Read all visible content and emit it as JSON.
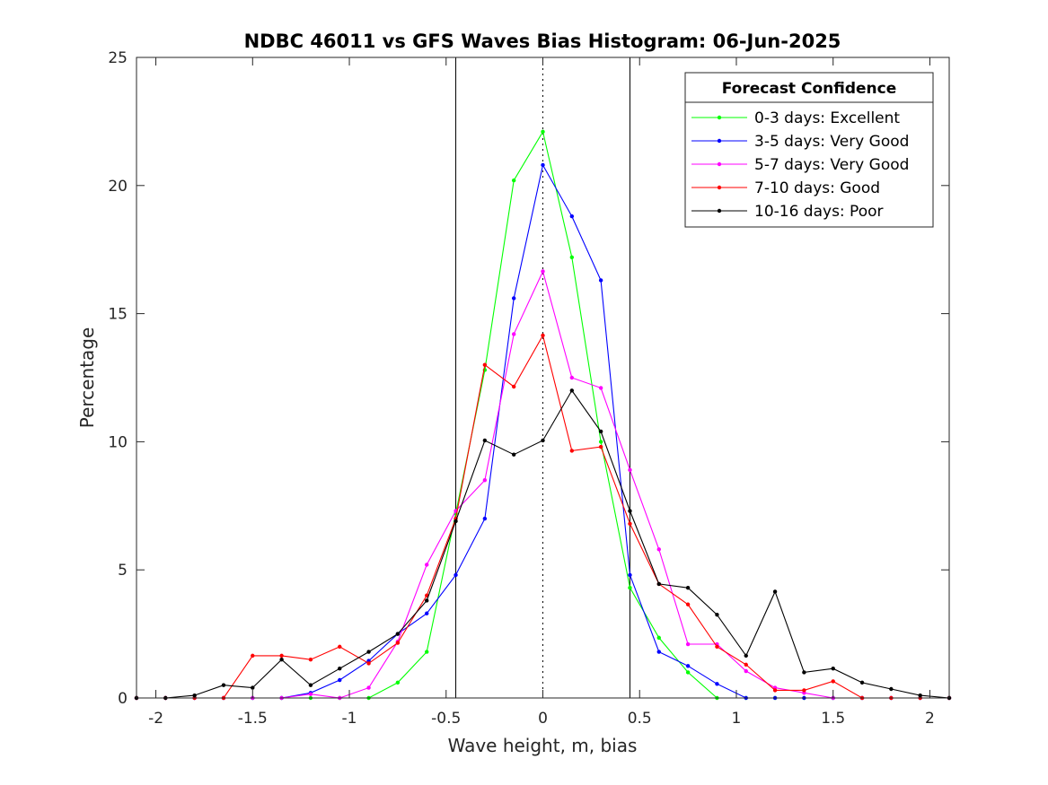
{
  "chart_data": {
    "type": "line",
    "title": "NDBC 46011 vs GFS Waves Bias Histogram: 06-Jun-2025",
    "xlabel": "Wave height, m, bias",
    "ylabel": "Percentage",
    "xlim": [
      -2.1,
      2.1
    ],
    "ylim": [
      0,
      25
    ],
    "xticks": [
      -2,
      -1.5,
      -1,
      -0.5,
      0,
      0.5,
      1,
      1.5,
      2
    ],
    "xtick_labels": [
      "-2",
      "-1.5",
      "-1",
      "-0.5",
      "0",
      "0.5",
      "1",
      "1.5",
      "2"
    ],
    "yticks": [
      0,
      5,
      10,
      15,
      20,
      25
    ],
    "ytick_labels": [
      "0",
      "5",
      "10",
      "15",
      "20",
      "25"
    ],
    "grid": false,
    "reference_lines": [
      {
        "x": -0.45,
        "style": "solid"
      },
      {
        "x": 0,
        "style": "dotted"
      },
      {
        "x": 0.45,
        "style": "solid"
      }
    ],
    "legend": {
      "title": "Forecast Confidence",
      "position": "top-right"
    },
    "series": [
      {
        "name": "0-3 days: Excellent",
        "color": "#00ff00",
        "points": [
          [
            -2.1,
            0
          ],
          [
            -1.95,
            0
          ],
          [
            -1.8,
            0
          ],
          [
            -1.65,
            0
          ],
          [
            -1.5,
            0
          ],
          [
            -1.35,
            0
          ],
          [
            -1.2,
            0
          ],
          [
            -1.05,
            0
          ],
          [
            -0.9,
            0
          ],
          [
            -0.75,
            0.6
          ],
          [
            -0.6,
            1.8
          ],
          [
            -0.45,
            7.2
          ],
          [
            -0.3,
            12.8
          ],
          [
            -0.15,
            20.2
          ],
          [
            0,
            22.1
          ],
          [
            0.15,
            17.2
          ],
          [
            0.3,
            10
          ],
          [
            0.45,
            4.3
          ],
          [
            0.6,
            2.35
          ],
          [
            0.75,
            1
          ],
          [
            0.9,
            0
          ],
          [
            1.05,
            0
          ],
          [
            1.2,
            0
          ],
          [
            1.35,
            0
          ],
          [
            1.5,
            0
          ],
          [
            1.65,
            0
          ],
          [
            1.8,
            0
          ],
          [
            1.95,
            0
          ],
          [
            2.1,
            0
          ]
        ]
      },
      {
        "name": "3-5 days: Very Good",
        "color": "#0000ff",
        "points": [
          [
            -2.1,
            0
          ],
          [
            -1.95,
            0
          ],
          [
            -1.8,
            0
          ],
          [
            -1.65,
            0
          ],
          [
            -1.5,
            0
          ],
          [
            -1.35,
            0
          ],
          [
            -1.2,
            0.2
          ],
          [
            -1.05,
            0.7
          ],
          [
            -0.9,
            1.45
          ],
          [
            -0.75,
            2.5
          ],
          [
            -0.6,
            3.3
          ],
          [
            -0.45,
            4.8
          ],
          [
            -0.3,
            7
          ],
          [
            -0.15,
            15.6
          ],
          [
            0,
            20.8
          ],
          [
            0.15,
            18.8
          ],
          [
            0.3,
            16.3
          ],
          [
            0.45,
            4.8
          ],
          [
            0.6,
            1.8
          ],
          [
            0.75,
            1.25
          ],
          [
            0.9,
            0.55
          ],
          [
            1.05,
            0
          ],
          [
            1.2,
            0
          ],
          [
            1.35,
            0
          ],
          [
            1.5,
            0
          ],
          [
            1.65,
            0
          ],
          [
            1.8,
            0
          ],
          [
            1.95,
            0
          ],
          [
            2.1,
            0
          ]
        ]
      },
      {
        "name": "5-7 days: Very Good",
        "color": "#ff00ff",
        "points": [
          [
            -2.1,
            0
          ],
          [
            -1.95,
            0
          ],
          [
            -1.8,
            0
          ],
          [
            -1.65,
            0
          ],
          [
            -1.5,
            0
          ],
          [
            -1.35,
            0
          ],
          [
            -1.2,
            0.15
          ],
          [
            -1.05,
            0
          ],
          [
            -0.9,
            0.4
          ],
          [
            -0.75,
            2.2
          ],
          [
            -0.6,
            5.2
          ],
          [
            -0.45,
            7.3
          ],
          [
            -0.3,
            8.5
          ],
          [
            -0.15,
            14.2
          ],
          [
            0,
            16.65
          ],
          [
            0.15,
            12.5
          ],
          [
            0.3,
            12.1
          ],
          [
            0.45,
            8.9
          ],
          [
            0.6,
            5.8
          ],
          [
            0.75,
            2.1
          ],
          [
            0.9,
            2.1
          ],
          [
            1.05,
            1.05
          ],
          [
            1.2,
            0.4
          ],
          [
            1.35,
            0.2
          ],
          [
            1.5,
            0
          ],
          [
            1.65,
            0
          ],
          [
            1.8,
            0
          ],
          [
            1.95,
            0
          ],
          [
            2.1,
            0
          ]
        ]
      },
      {
        "name": "7-10 days: Good",
        "color": "#ff0000",
        "points": [
          [
            -2.1,
            0
          ],
          [
            -1.95,
            0
          ],
          [
            -1.8,
            0
          ],
          [
            -1.65,
            0
          ],
          [
            -1.5,
            1.65
          ],
          [
            -1.35,
            1.65
          ],
          [
            -1.2,
            1.5
          ],
          [
            -1.05,
            2
          ],
          [
            -0.9,
            1.35
          ],
          [
            -0.75,
            2.15
          ],
          [
            -0.6,
            4
          ],
          [
            -0.45,
            7
          ],
          [
            -0.3,
            13
          ],
          [
            -0.15,
            12.15
          ],
          [
            0,
            14.15
          ],
          [
            0.15,
            9.65
          ],
          [
            0.3,
            9.8
          ],
          [
            0.45,
            6.8
          ],
          [
            0.6,
            4.45
          ],
          [
            0.75,
            3.65
          ],
          [
            0.9,
            2
          ],
          [
            1.05,
            1.3
          ],
          [
            1.2,
            0.3
          ],
          [
            1.35,
            0.3
          ],
          [
            1.5,
            0.65
          ],
          [
            1.65,
            0
          ],
          [
            1.8,
            0
          ],
          [
            1.95,
            0
          ],
          [
            2.1,
            0
          ]
        ]
      },
      {
        "name": "10-16 days: Poor",
        "color": "#000000",
        "points": [
          [
            -2.1,
            0
          ],
          [
            -1.95,
            0
          ],
          [
            -1.8,
            0.1
          ],
          [
            -1.65,
            0.5
          ],
          [
            -1.5,
            0.4
          ],
          [
            -1.35,
            1.5
          ],
          [
            -1.2,
            0.5
          ],
          [
            -1.05,
            1.15
          ],
          [
            -0.9,
            1.8
          ],
          [
            -0.75,
            2.5
          ],
          [
            -0.6,
            3.8
          ],
          [
            -0.45,
            6.9
          ],
          [
            -0.3,
            10.05
          ],
          [
            -0.15,
            9.5
          ],
          [
            0,
            10.05
          ],
          [
            0.15,
            12
          ],
          [
            0.3,
            10.4
          ],
          [
            0.45,
            7.3
          ],
          [
            0.6,
            4.45
          ],
          [
            0.75,
            4.3
          ],
          [
            0.9,
            3.25
          ],
          [
            1.05,
            1.65
          ],
          [
            1.2,
            4.15
          ],
          [
            1.35,
            1
          ],
          [
            1.5,
            1.15
          ],
          [
            1.65,
            0.6
          ],
          [
            1.8,
            0.35
          ],
          [
            1.95,
            0.1
          ],
          [
            2.1,
            0
          ]
        ]
      }
    ]
  }
}
